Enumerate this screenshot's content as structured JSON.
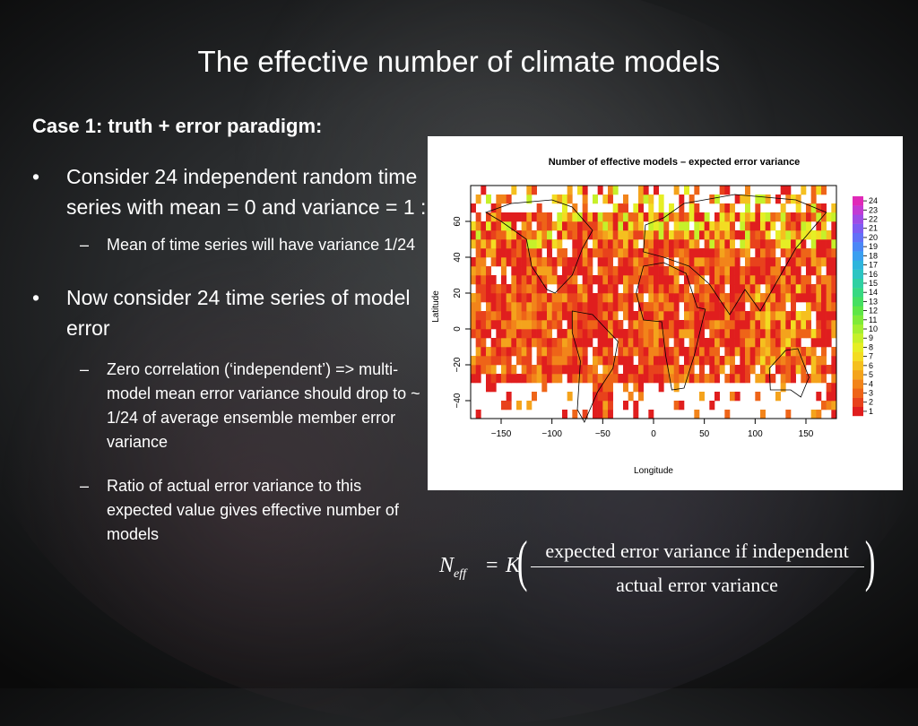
{
  "slide": {
    "title": "The effective number of climate models",
    "subtitle": "Case 1: truth + error paradigm:",
    "bullets": [
      {
        "text": "Consider 24 independent random time series with mean = 0 and variance = 1 :",
        "level": 1
      },
      {
        "text": "Mean of time series will have variance 1/24",
        "level": 2
      },
      {
        "text": "Now consider 24 time series of model error",
        "level": 1
      },
      {
        "text": "Zero correlation (‘independent’) => multi-model mean error variance should drop to ~ 1/24 of average ensemble member error variance",
        "level": 2
      },
      {
        "text": "Ratio of actual error variance to this expected value gives effective number of models",
        "level": 2
      }
    ],
    "bullet_glyph": "•",
    "dash_glyph": "–"
  },
  "chart_data": {
    "type": "heatmap",
    "title": "Number of effective models – expected error variance",
    "xlabel": "Longitude",
    "ylabel": "Latitude",
    "xticks": [
      -150,
      -100,
      -50,
      0,
      50,
      100,
      150
    ],
    "yticks": [
      -40,
      -20,
      0,
      20,
      40,
      60
    ],
    "xlim": [
      -180,
      180
    ],
    "ylim": [
      -50,
      80
    ],
    "colorbar": {
      "levels": [
        1,
        2,
        3,
        4,
        5,
        6,
        7,
        8,
        9,
        10,
        11,
        12,
        13,
        14,
        15,
        16,
        17,
        18,
        19,
        20,
        21,
        22,
        23,
        24
      ],
      "colors": [
        "#e01e1e",
        "#e8421c",
        "#ee6418",
        "#f2841a",
        "#f4a31c",
        "#f5c01f",
        "#f3dc22",
        "#e6ee25",
        "#c6f02a",
        "#a3ee30",
        "#7fea38",
        "#5ee646",
        "#45df62",
        "#37d882",
        "#2fd0a2",
        "#2cc5c2",
        "#2eb5dc",
        "#3a9ff0",
        "#4a87f6",
        "#6270f7",
        "#7e5cf2",
        "#9e4ce6",
        "#c23bd4",
        "#e02ab8"
      ]
    }
  },
  "equation": {
    "lhs": "N",
    "lhs_sub": "eff",
    "equals": "=",
    "K": "K",
    "numerator": "expected error variance if independent",
    "denominator": "actual error variance",
    "paren_left": "(",
    "paren_right": ")"
  }
}
